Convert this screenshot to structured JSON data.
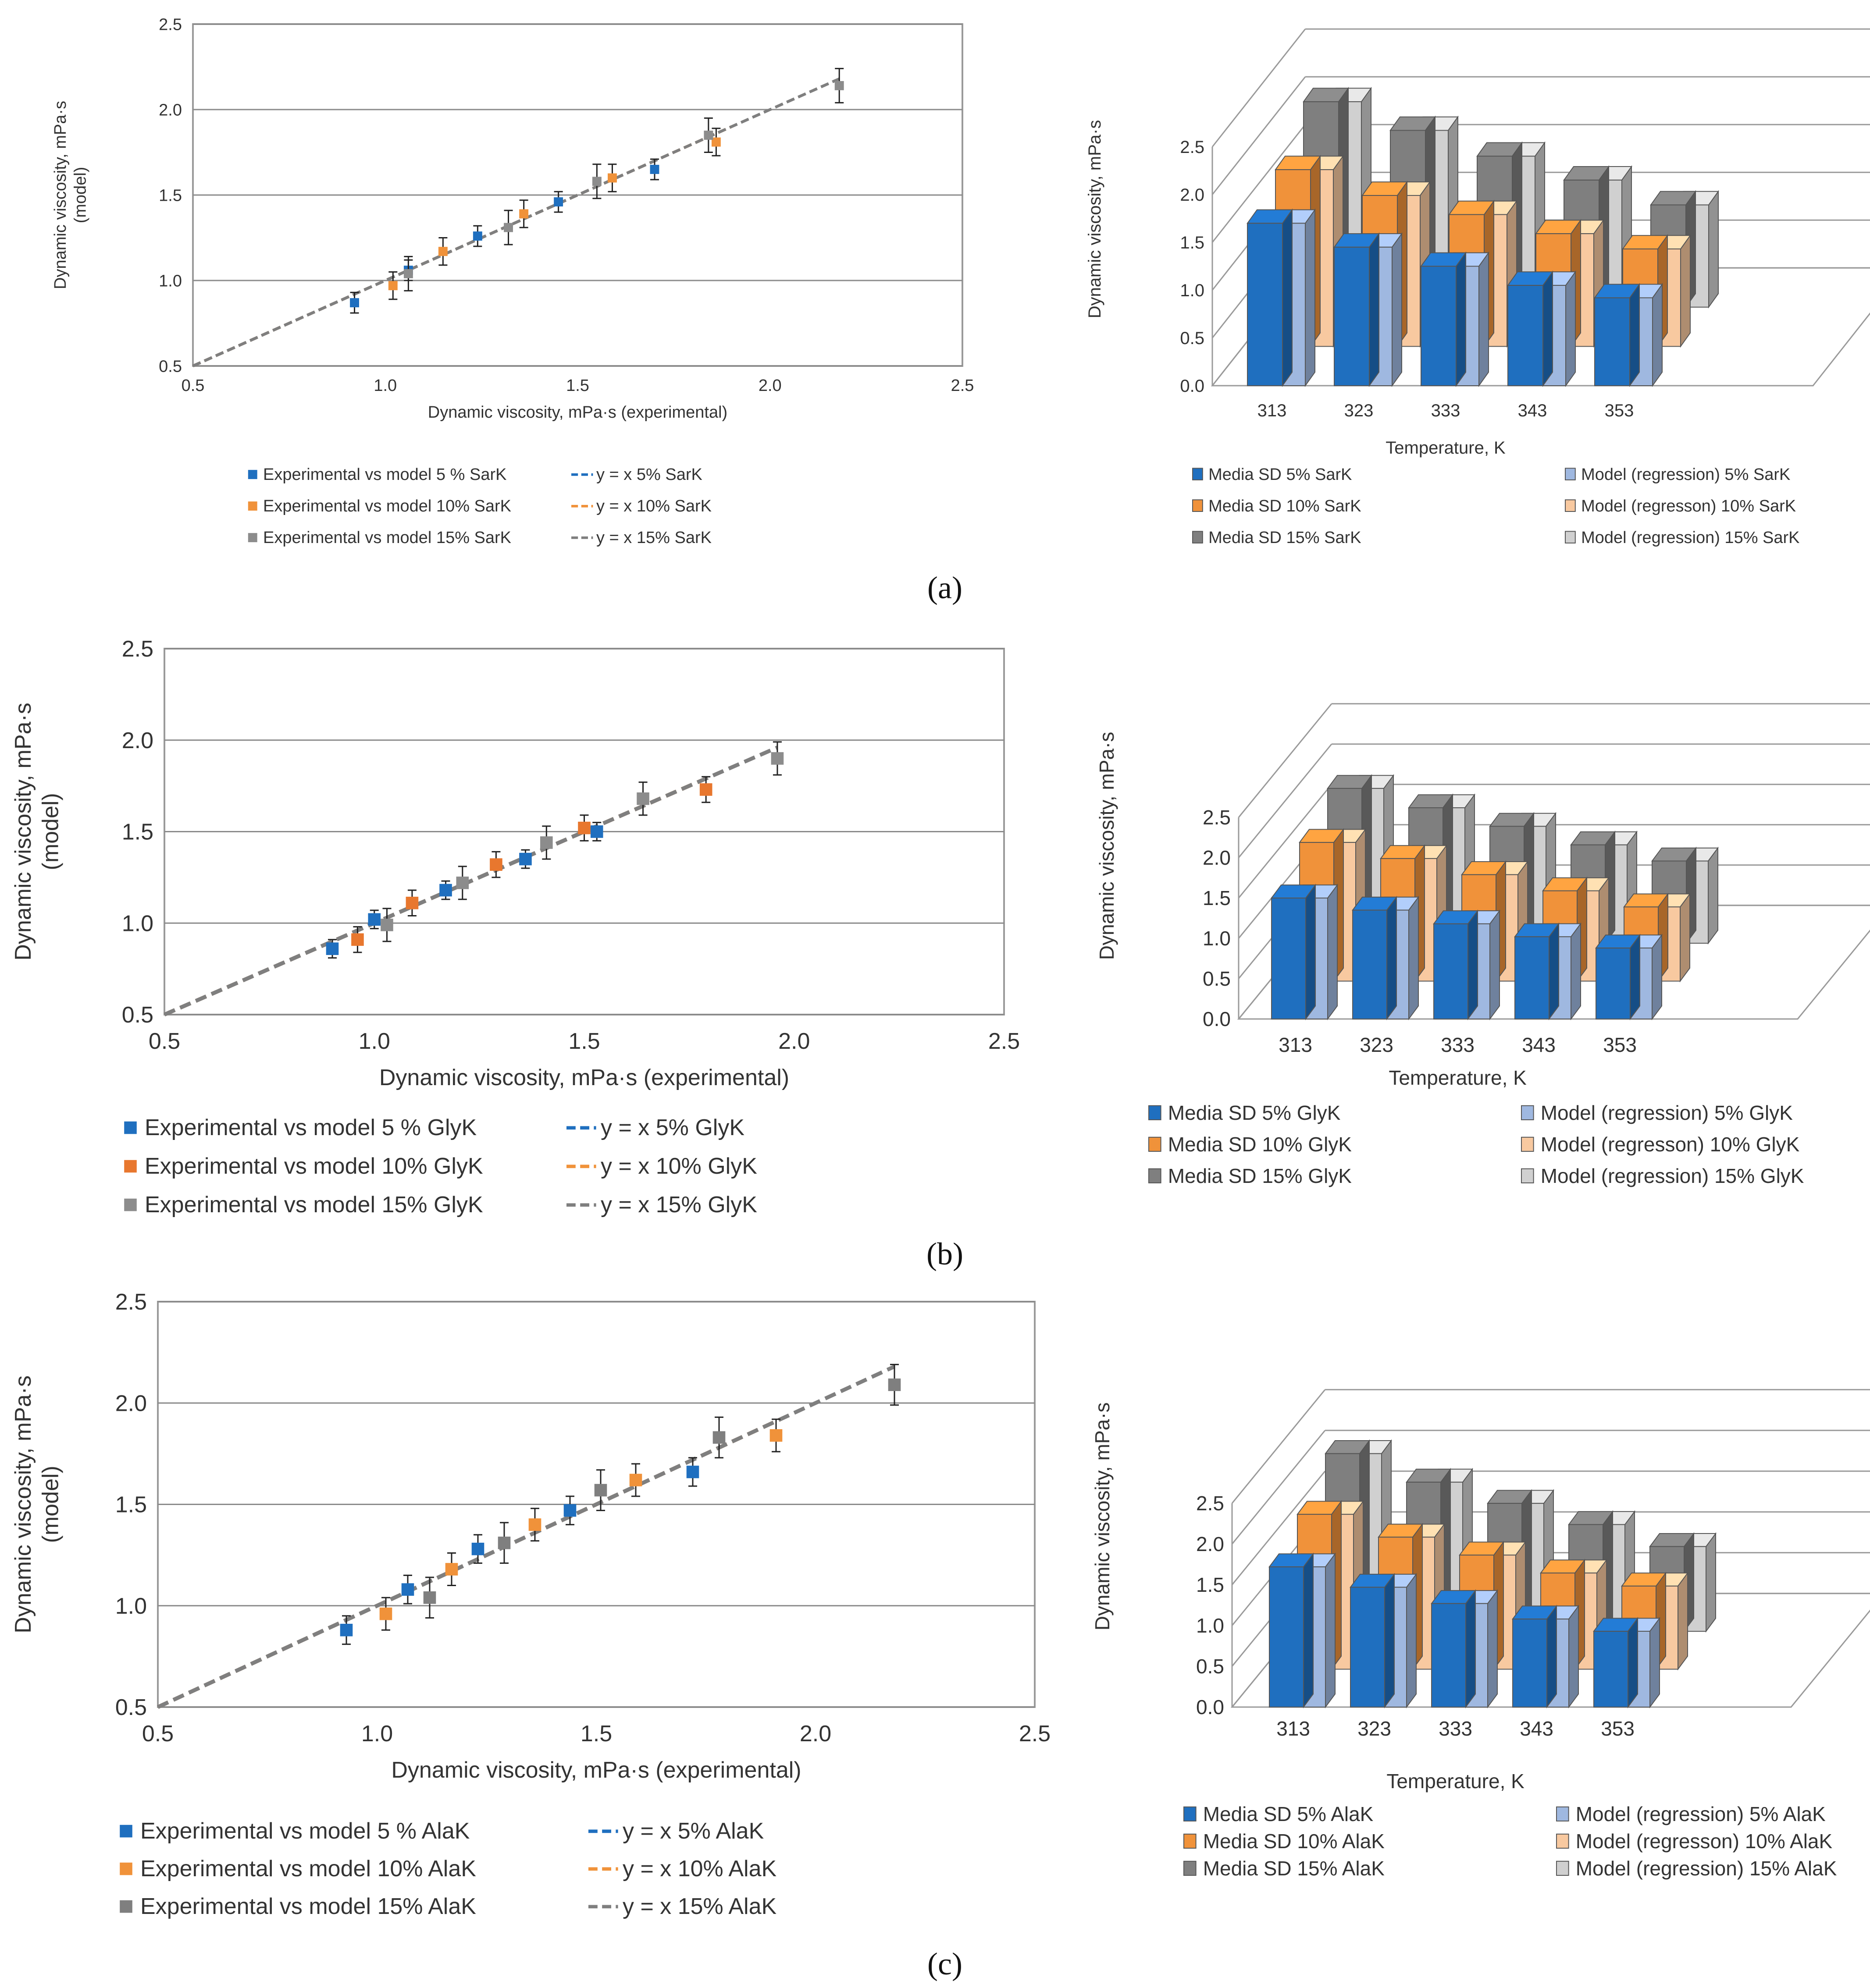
{
  "figure": {
    "panel_labels": [
      "(a)",
      "(b)",
      "(c)"
    ]
  },
  "chart_data": [
    {
      "type": "scatter",
      "panel": "(a)",
      "xlabel": "Dynamic  viscosity, mPa·s (experimental)",
      "ylabel": [
        "Dynamic  viscosity, mPa·s",
        "(model)"
      ],
      "xlim": [
        0.5,
        2.5
      ],
      "ylim": [
        0.5,
        2.5
      ],
      "xticks": [
        "0.5",
        "1.0",
        "1.5",
        "2.0",
        "2.5"
      ],
      "yticks": [
        "0.5",
        "1.0",
        "1.5",
        "2.0",
        "2.5"
      ],
      "grid": "horizontal",
      "legend_position": "bottom",
      "series": [
        {
          "name": "Experimental vs model 5 % SarK",
          "color": "#1f6fbf",
          "points": [
            [
              0.92,
              0.87
            ],
            [
              1.06,
              1.06
            ],
            [
              1.24,
              1.26
            ],
            [
              1.45,
              1.46
            ],
            [
              1.7,
              1.65
            ]
          ],
          "error": 0.06
        },
        {
          "name": "Experimental vs model 10% SarK",
          "color": "#f0923a",
          "points": [
            [
              1.02,
              0.97
            ],
            [
              1.15,
              1.17
            ],
            [
              1.36,
              1.39
            ],
            [
              1.59,
              1.6
            ],
            [
              1.86,
              1.81
            ]
          ],
          "error": 0.08
        },
        {
          "name": "Experimental vs model 15% SarK",
          "color": "#8c8c8c",
          "points": [
            [
              1.06,
              1.04
            ],
            [
              1.32,
              1.31
            ],
            [
              1.55,
              1.58
            ],
            [
              1.84,
              1.85
            ],
            [
              2.18,
              2.14
            ]
          ],
          "error": 0.1
        }
      ],
      "lines": [
        {
          "name": "y = x 5% SarK",
          "color": "#1f6fbf",
          "from": [
            0.5,
            0.5
          ],
          "to": [
            1.75,
            1.75
          ]
        },
        {
          "name": "y = x 10% SarK",
          "color": "#f0923a",
          "from": [
            0.5,
            0.5
          ],
          "to": [
            1.9,
            1.9
          ]
        },
        {
          "name": "y = x 15% SarK",
          "color": "#7f7f7f",
          "from": [
            0.5,
            0.5
          ],
          "to": [
            2.18,
            2.18
          ]
        }
      ]
    },
    {
      "type": "bar",
      "panel": "(a)",
      "view": "3d",
      "xlabel": "Temperature, K",
      "ylabel": "Dynamic  viscosity, mPa·s",
      "categories": [
        "313",
        "323",
        "333",
        "343",
        "353"
      ],
      "ylim": [
        0,
        2.5
      ],
      "yticks": [
        "0.0",
        "0.5",
        "1.0",
        "1.5",
        "2.0",
        "2.5"
      ],
      "legend_position": "bottom",
      "series": [
        {
          "name": "Media SD 5% SarK",
          "color": "#1f6fbf",
          "values": [
            1.7,
            1.45,
            1.25,
            1.05,
            0.92
          ]
        },
        {
          "name": "Model (regression) 5% SarK",
          "color": "#9fb8e0",
          "values": [
            1.7,
            1.45,
            1.25,
            1.05,
            0.92
          ]
        },
        {
          "name": "Media SD 10% SarK",
          "color": "#f0923a",
          "values": [
            1.85,
            1.58,
            1.38,
            1.18,
            1.02
          ]
        },
        {
          "name": "Model (regresson) 10% SarK",
          "color": "#f8c9a0",
          "values": [
            1.85,
            1.58,
            1.38,
            1.18,
            1.02
          ]
        },
        {
          "name": "Media SD 15% SarK",
          "color": "#7f7f7f",
          "values": [
            2.15,
            1.85,
            1.58,
            1.33,
            1.07
          ]
        },
        {
          "name": "Model (regression) 15% SarK",
          "color": "#d0d0d0",
          "values": [
            2.15,
            1.85,
            1.58,
            1.33,
            1.07
          ]
        }
      ]
    },
    {
      "type": "scatter",
      "panel": "(b)",
      "xlabel": "Dynamic  viscosity, mPa·s (experimental)",
      "ylabel": [
        "Dynamic  viscosity, mPa·s",
        "(model)"
      ],
      "xlim": [
        0.5,
        2.5
      ],
      "ylim": [
        0.5,
        2.5
      ],
      "xticks": [
        "0.5",
        "1.0",
        "1.5",
        "2.0",
        "2.5"
      ],
      "yticks": [
        "0.5",
        "1.0",
        "1.5",
        "2.0",
        "2.5"
      ],
      "grid": "horizontal",
      "legend_position": "bottom",
      "series": [
        {
          "name": "Experimental vs model 5 % GlyK",
          "color": "#1f6fbf",
          "points": [
            [
              0.9,
              0.86
            ],
            [
              1.0,
              1.02
            ],
            [
              1.17,
              1.18
            ],
            [
              1.36,
              1.35
            ],
            [
              1.53,
              1.5
            ]
          ],
          "error": 0.05
        },
        {
          "name": "Experimental vs model 10% GlyK",
          "color": "#e8772e",
          "points": [
            [
              0.96,
              0.91
            ],
            [
              1.09,
              1.11
            ],
            [
              1.29,
              1.32
            ],
            [
              1.5,
              1.52
            ],
            [
              1.79,
              1.73
            ]
          ],
          "error": 0.07
        },
        {
          "name": "Experimental vs model 15% GlyK",
          "color": "#8c8c8c",
          "points": [
            [
              1.03,
              0.99
            ],
            [
              1.21,
              1.22
            ],
            [
              1.41,
              1.44
            ],
            [
              1.64,
              1.68
            ],
            [
              1.96,
              1.9
            ]
          ],
          "error": 0.09
        }
      ],
      "lines": [
        {
          "name": "y = x 5% GlyK",
          "color": "#1f6fbf",
          "from": [
            0.5,
            0.5
          ],
          "to": [
            1.55,
            1.55
          ]
        },
        {
          "name": "y = x 10% GlyK",
          "color": "#f0923a",
          "from": [
            0.5,
            0.5
          ],
          "to": [
            1.8,
            1.8
          ]
        },
        {
          "name": "y = x 15% GlyK",
          "color": "#7f7f7f",
          "from": [
            0.5,
            0.5
          ],
          "to": [
            1.96,
            1.96
          ]
        }
      ]
    },
    {
      "type": "bar",
      "panel": "(b)",
      "view": "3d",
      "xlabel": "Temperature, K",
      "ylabel": "Dynamic  viscosity, mPa·s",
      "categories": [
        "313",
        "323",
        "333",
        "343",
        "353"
      ],
      "ylim": [
        0,
        2.5
      ],
      "yticks": [
        "0.0",
        "0.5",
        "1.0",
        "1.5",
        "2.0",
        "2.5"
      ],
      "legend_position": "bottom",
      "series": [
        {
          "name": "Media SD 5% GlyK",
          "color": "#1f6fbf",
          "values": [
            1.5,
            1.35,
            1.18,
            1.02,
            0.88
          ]
        },
        {
          "name": "Model (regression) 5% GlyK",
          "color": "#9fb8e0",
          "values": [
            1.5,
            1.35,
            1.18,
            1.02,
            0.88
          ]
        },
        {
          "name": "Media SD 10% GlyK",
          "color": "#f0923a",
          "values": [
            1.72,
            1.52,
            1.32,
            1.12,
            0.92
          ]
        },
        {
          "name": "Model (regresson) 10% GlyK",
          "color": "#f8c9a0",
          "values": [
            1.72,
            1.52,
            1.32,
            1.12,
            0.92
          ]
        },
        {
          "name": "Media SD 15% GlyK",
          "color": "#7f7f7f",
          "values": [
            1.92,
            1.68,
            1.45,
            1.22,
            1.02
          ]
        },
        {
          "name": "Model (regression) 15% GlyK",
          "color": "#d0d0d0",
          "values": [
            1.92,
            1.68,
            1.45,
            1.22,
            1.02
          ]
        }
      ]
    },
    {
      "type": "scatter",
      "panel": "(c)",
      "xlabel": "Dynamic  viscosity, mPa·s (experimental)",
      "ylabel": [
        "Dynamic  viscosity, mPa·s",
        "(model)"
      ],
      "xlim": [
        0.5,
        2.5
      ],
      "ylim": [
        0.5,
        2.5
      ],
      "xticks": [
        "0.5",
        "1.0",
        "1.5",
        "2.0",
        "2.5"
      ],
      "yticks": [
        "0.5",
        "1.0",
        "1.5",
        "2.0",
        "2.5"
      ],
      "grid": "horizontal",
      "legend_position": "bottom",
      "series": [
        {
          "name": "Experimental vs model 5 % AlaK",
          "color": "#1f6fbf",
          "points": [
            [
              0.93,
              0.88
            ],
            [
              1.07,
              1.08
            ],
            [
              1.23,
              1.28
            ],
            [
              1.44,
              1.47
            ],
            [
              1.72,
              1.66
            ]
          ],
          "error": 0.07
        },
        {
          "name": "Experimental vs model 10% AlaK",
          "color": "#f0923a",
          "points": [
            [
              1.02,
              0.96
            ],
            [
              1.17,
              1.18
            ],
            [
              1.36,
              1.4
            ],
            [
              1.59,
              1.62
            ],
            [
              1.91,
              1.84
            ]
          ],
          "error": 0.08
        },
        {
          "name": "Experimental vs model 15% AlaK",
          "color": "#7f7f7f",
          "points": [
            [
              1.12,
              1.04
            ],
            [
              1.29,
              1.31
            ],
            [
              1.51,
              1.57
            ],
            [
              1.78,
              1.83
            ],
            [
              2.18,
              2.09
            ]
          ],
          "error": 0.1
        }
      ],
      "lines": [
        {
          "name": "y = x 5% AlaK",
          "color": "#1f6fbf",
          "from": [
            0.5,
            0.5
          ],
          "to": [
            1.75,
            1.75
          ]
        },
        {
          "name": "y = x 10% AlaK",
          "color": "#f0923a",
          "from": [
            0.5,
            0.5
          ],
          "to": [
            1.92,
            1.92
          ]
        },
        {
          "name": "y = x 15% AlaK",
          "color": "#7f7f7f",
          "from": [
            0.5,
            0.5
          ],
          "to": [
            2.18,
            2.18
          ]
        }
      ]
    },
    {
      "type": "bar",
      "panel": "(c)",
      "view": "3d",
      "xlabel": "Temperature, K",
      "ylabel": "Dynamic  viscosity, mPa·s",
      "categories": [
        "313",
        "323",
        "333",
        "343",
        "353"
      ],
      "ylim": [
        0,
        2.5
      ],
      "yticks": [
        "0.0",
        "0.5",
        "1.0",
        "1.5",
        "2.0",
        "2.5"
      ],
      "legend_position": "bottom",
      "series": [
        {
          "name": "Media SD 5% AlaK",
          "color": "#1f6fbf",
          "values": [
            1.72,
            1.47,
            1.27,
            1.08,
            0.93
          ]
        },
        {
          "name": "Model (regression) 5% AlaK",
          "color": "#9fb8e0",
          "values": [
            1.72,
            1.47,
            1.27,
            1.08,
            0.93
          ]
        },
        {
          "name": "Media SD 10% AlaK",
          "color": "#f0923a",
          "values": [
            1.9,
            1.62,
            1.4,
            1.18,
            1.02
          ]
        },
        {
          "name": "Model (regresson) 10% AlaK",
          "color": "#f8c9a0",
          "values": [
            1.9,
            1.62,
            1.4,
            1.18,
            1.02
          ]
        },
        {
          "name": "Media SD 15% AlaK",
          "color": "#7f7f7f",
          "values": [
            2.18,
            1.83,
            1.57,
            1.31,
            1.04
          ]
        },
        {
          "name": "Model (regression) 15% AlaK",
          "color": "#d0d0d0",
          "values": [
            2.18,
            1.83,
            1.57,
            1.31,
            1.04
          ]
        }
      ]
    }
  ]
}
